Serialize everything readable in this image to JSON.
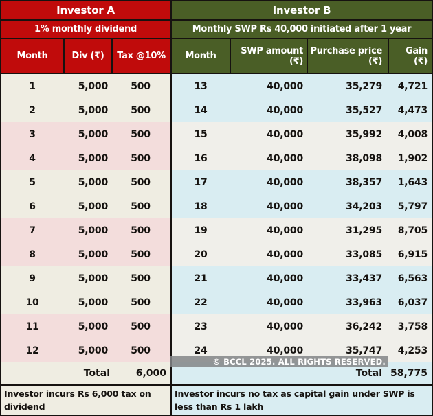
{
  "investor_a": {
    "title": "Investor A",
    "subtitle": "1% monthly dividend",
    "columns": [
      "Month",
      "Div (₹)",
      "Tax @10%"
    ],
    "rows": [
      {
        "month": "1",
        "div": "5,000",
        "tax": "500"
      },
      {
        "month": "2",
        "div": "5,000",
        "tax": "500"
      },
      {
        "month": "3",
        "div": "5,000",
        "tax": "500"
      },
      {
        "month": "4",
        "div": "5,000",
        "tax": "500"
      },
      {
        "month": "5",
        "div": "5,000",
        "tax": "500"
      },
      {
        "month": "6",
        "div": "5,000",
        "tax": "500"
      },
      {
        "month": "7",
        "div": "5,000",
        "tax": "500"
      },
      {
        "month": "8",
        "div": "5,000",
        "tax": "500"
      },
      {
        "month": "9",
        "div": "5,000",
        "tax": "500"
      },
      {
        "month": "10",
        "div": "5,000",
        "tax": "500"
      },
      {
        "month": "11",
        "div": "5,000",
        "tax": "500"
      },
      {
        "month": "12",
        "div": "5,000",
        "tax": "500"
      }
    ],
    "total_label": "Total",
    "total_value": "6,000",
    "note": "Investor incurs Rs 6,000 tax on dividend"
  },
  "investor_b": {
    "title": "Investor B",
    "subtitle": "Monthly SWP Rs 40,000 initiated after 1 year",
    "columns": [
      {
        "label": "Month",
        "unit": ""
      },
      {
        "label": "SWP amount",
        "unit": "(₹)"
      },
      {
        "label": "Purchase price",
        "unit": "(₹)"
      },
      {
        "label": "Gain",
        "unit": "(₹)"
      }
    ],
    "rows": [
      {
        "month": "13",
        "swp": "40,000",
        "purchase": "35,279",
        "gain": "4,721"
      },
      {
        "month": "14",
        "swp": "40,000",
        "purchase": "35,527",
        "gain": "4,473"
      },
      {
        "month": "15",
        "swp": "40,000",
        "purchase": "35,992",
        "gain": "4,008"
      },
      {
        "month": "16",
        "swp": "40,000",
        "purchase": "38,098",
        "gain": "1,902"
      },
      {
        "month": "17",
        "swp": "40,000",
        "purchase": "38,357",
        "gain": "1,643"
      },
      {
        "month": "18",
        "swp": "40,000",
        "purchase": "34,203",
        "gain": "5,797"
      },
      {
        "month": "19",
        "swp": "40,000",
        "purchase": "31,295",
        "gain": "8,705"
      },
      {
        "month": "20",
        "swp": "40,000",
        "purchase": "33,085",
        "gain": "6,915"
      },
      {
        "month": "21",
        "swp": "40,000",
        "purchase": "33,437",
        "gain": "6,563"
      },
      {
        "month": "22",
        "swp": "40,000",
        "purchase": "33,963",
        "gain": "6,037"
      },
      {
        "month": "23",
        "swp": "40,000",
        "purchase": "36,242",
        "gain": "3,758"
      },
      {
        "month": "24",
        "swp": "40,000",
        "purchase": "35,747",
        "gain": "4,253"
      }
    ],
    "total_label": "Total",
    "total_value": "58,775",
    "note": "Investor incurs no tax as capital gain under SWP is less than Rs 1 lakh"
  },
  "watermark": "© BCCL 2025. ALL RIGHTS RESERVED.",
  "colors": {
    "red": "#c00b0b",
    "olive": "#4a5e26",
    "cream": "#efede2",
    "rose": "#f3dddc",
    "light_blue": "#d9edf2",
    "off_white": "#f0efea"
  },
  "chart_data": [
    {
      "type": "table",
      "title": "Investor A — 1% monthly dividend",
      "columns": [
        "Month",
        "Div (₹)",
        "Tax @10%"
      ],
      "rows": [
        [
          1,
          5000,
          500
        ],
        [
          2,
          5000,
          500
        ],
        [
          3,
          5000,
          500
        ],
        [
          4,
          5000,
          500
        ],
        [
          5,
          5000,
          500
        ],
        [
          6,
          5000,
          500
        ],
        [
          7,
          5000,
          500
        ],
        [
          8,
          5000,
          500
        ],
        [
          9,
          5000,
          500
        ],
        [
          10,
          5000,
          500
        ],
        [
          11,
          5000,
          500
        ],
        [
          12,
          5000,
          500
        ]
      ],
      "total_tax": 6000,
      "note": "Investor incurs Rs 6,000 tax on dividend"
    },
    {
      "type": "table",
      "title": "Investor B — Monthly SWP Rs 40,000 initiated after 1 year",
      "columns": [
        "Month",
        "SWP amount (₹)",
        "Purchase price (₹)",
        "Gain (₹)"
      ],
      "rows": [
        [
          13,
          40000,
          35279,
          4721
        ],
        [
          14,
          40000,
          35527,
          4473
        ],
        [
          15,
          40000,
          35992,
          4008
        ],
        [
          16,
          40000,
          38098,
          1902
        ],
        [
          17,
          40000,
          38357,
          1643
        ],
        [
          18,
          40000,
          34203,
          5797
        ],
        [
          19,
          40000,
          31295,
          8705
        ],
        [
          20,
          40000,
          33085,
          6915
        ],
        [
          21,
          40000,
          33437,
          6563
        ],
        [
          22,
          40000,
          33963,
          6037
        ],
        [
          23,
          40000,
          36242,
          3758
        ],
        [
          24,
          40000,
          35747,
          4253
        ]
      ],
      "total_gain": 58775,
      "note": "Investor incurs no tax as capital gain under SWP is less than Rs 1 lakh"
    }
  ]
}
